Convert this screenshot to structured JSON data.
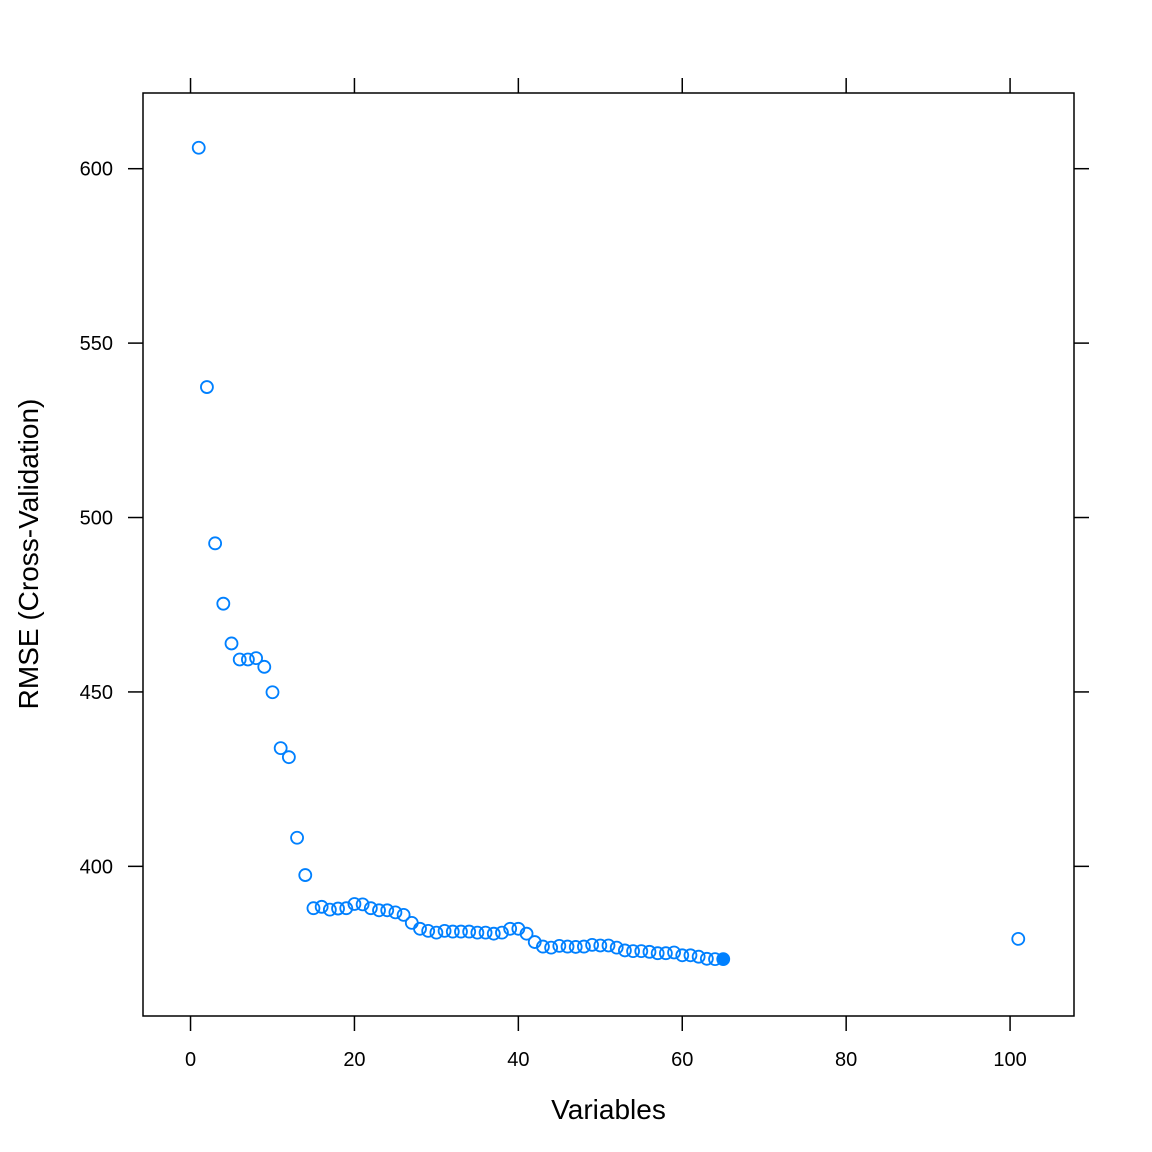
{
  "chart_data": {
    "type": "scatter",
    "title": "",
    "xlabel": "Variables",
    "ylabel": "RMSE (Cross-Validation)",
    "xlim": [
      -5.8,
      107.8
    ],
    "ylim": [
      357.1,
      621.7
    ],
    "xticks": [
      0,
      20,
      40,
      60,
      80,
      100
    ],
    "yticks": [
      400,
      450,
      500,
      550,
      600
    ],
    "grid": false,
    "colors": {
      "point": "#0080ff",
      "axis": "#000000"
    },
    "selected_index": 64,
    "x": [
      1,
      2,
      3,
      4,
      5,
      6,
      7,
      8,
      9,
      10,
      11,
      12,
      13,
      14,
      15,
      16,
      17,
      18,
      19,
      20,
      21,
      22,
      23,
      24,
      25,
      26,
      27,
      28,
      29,
      30,
      31,
      32,
      33,
      34,
      35,
      36,
      37,
      38,
      39,
      40,
      41,
      42,
      43,
      44,
      45,
      46,
      47,
      48,
      49,
      50,
      51,
      52,
      53,
      54,
      55,
      56,
      57,
      58,
      59,
      60,
      61,
      62,
      63,
      64,
      65,
      101
    ],
    "y": [
      606.0,
      537.4,
      492.6,
      475.3,
      463.9,
      459.3,
      459.3,
      459.7,
      457.2,
      449.9,
      433.9,
      431.3,
      408.2,
      397.5,
      388.0,
      388.4,
      387.6,
      387.9,
      388.0,
      389.2,
      389.1,
      388.0,
      387.4,
      387.4,
      386.8,
      386.1,
      383.8,
      382.1,
      381.5,
      381.0,
      381.5,
      381.3,
      381.3,
      381.3,
      381.0,
      381.0,
      380.7,
      381.0,
      382.1,
      382.1,
      380.7,
      378.3,
      377.0,
      376.7,
      377.2,
      377.0,
      376.9,
      377.0,
      377.5,
      377.3,
      377.3,
      376.7,
      375.9,
      375.7,
      375.7,
      375.5,
      375.1,
      375.1,
      375.3,
      374.5,
      374.5,
      374.1,
      373.5,
      373.4,
      373.4,
      379.2
    ]
  }
}
